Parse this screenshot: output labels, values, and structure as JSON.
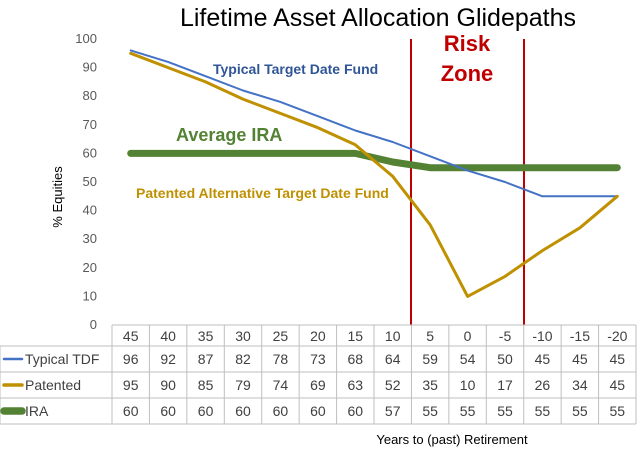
{
  "chart_data": {
    "type": "line",
    "title": "Lifetime Asset Allocation Glidepaths",
    "ylabel": "% Equities",
    "xlabel": "Years to (past) Retirement",
    "ylim": [
      0,
      100
    ],
    "y_ticks": [
      0,
      10,
      20,
      30,
      40,
      50,
      60,
      70,
      80,
      90,
      100
    ],
    "categories": [
      "45",
      "40",
      "35",
      "30",
      "25",
      "20",
      "15",
      "10",
      "5",
      "0",
      "-5",
      "-10",
      "-15",
      "-20"
    ],
    "series": [
      {
        "name": "Typical TDF",
        "color": "#4472c4",
        "values": [
          96,
          92,
          87,
          82,
          78,
          73,
          68,
          64,
          59,
          54,
          50,
          45,
          45,
          45
        ]
      },
      {
        "name": "Patented",
        "color": "#bf9000",
        "values": [
          95,
          90,
          85,
          79,
          74,
          69,
          63,
          52,
          35,
          10,
          17,
          26,
          34,
          45
        ]
      },
      {
        "name": "IRA",
        "color": "#548235",
        "values": [
          60,
          60,
          60,
          60,
          60,
          60,
          60,
          57,
          55,
          55,
          55,
          55,
          55,
          55
        ]
      }
    ],
    "annotations": [
      {
        "text": "Typical Target Date Fund",
        "color": "#2f5597"
      },
      {
        "text": "Average IRA",
        "color": "#548235"
      },
      {
        "text": "Patented Alternative Target Date Fund",
        "color": "#bf9000"
      },
      {
        "text": "Risk",
        "color": "#c00000"
      },
      {
        "text": "Zone",
        "color": "#c00000"
      }
    ],
    "risk_zone_color": "#c00000",
    "grid": false,
    "legend": "data-table"
  }
}
